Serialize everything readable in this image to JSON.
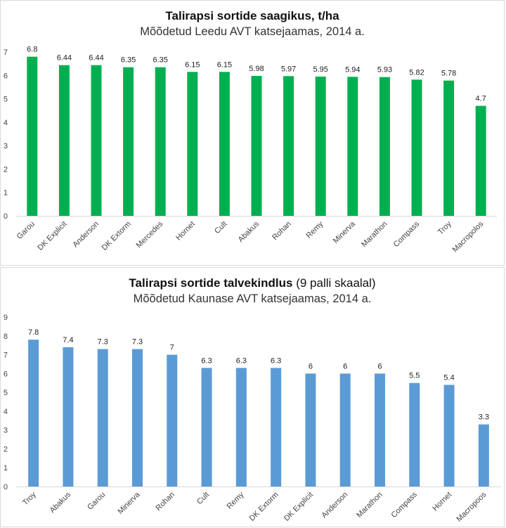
{
  "chart_data": [
    {
      "type": "bar",
      "title": "Talirapsi sortide saagikus, t/ha",
      "subtitle": "Mõõdetud Leedu AVT katsejaamas, 2014 a.",
      "categories": [
        "Garou",
        "DK Explicit",
        "Anderson",
        "DK Extorm",
        "Mercedes",
        "Hornet",
        "Cult",
        "Abakus",
        "Rohan",
        "Remy",
        "Minerva",
        "Marathon",
        "Compass",
        "Troy",
        "Macropolos"
      ],
      "values": [
        6.8,
        6.44,
        6.44,
        6.35,
        6.35,
        6.15,
        6.15,
        5.98,
        5.97,
        5.95,
        5.94,
        5.93,
        5.82,
        5.78,
        4.7
      ],
      "data_labels": [
        "6.8",
        "6.44",
        "6.44",
        "6.35",
        "6.35",
        "6.15",
        "6.15",
        "5.98",
        "5.97",
        "5.95",
        "5.94",
        "5.93",
        "5.82",
        "5.78",
        "4.7"
      ],
      "ylim": [
        0,
        7
      ],
      "yticks": [
        "0",
        "1",
        "2",
        "3",
        "4",
        "5",
        "6",
        "7"
      ],
      "grid": false,
      "color": "#00b050"
    },
    {
      "type": "bar",
      "title_bold": "Talirapsi sortide talvekindlus",
      "title_rest": " (9 palli skaalal)",
      "subtitle": "Mõõdetud Kaunase AVT katsejaamas, 2014 a.",
      "categories": [
        "Troy",
        "Abakus",
        "Garou",
        "Minerva",
        "Rohan",
        "Cult",
        "Remy",
        "DK Extorm",
        "DK Explicit",
        "Anderson",
        "Marathon",
        "Compass",
        "Hornet",
        "Macropoos"
      ],
      "values": [
        7.8,
        7.4,
        7.3,
        7.3,
        7,
        6.3,
        6.3,
        6.3,
        6,
        6,
        6,
        5.5,
        5.4,
        3.3
      ],
      "data_labels": [
        "7.8",
        "7.4",
        "7.3",
        "7.3",
        "7",
        "6.3",
        "6.3",
        "6.3",
        "6",
        "6",
        "6",
        "5.5",
        "5.4",
        "3.3"
      ],
      "ylim": [
        0,
        9
      ],
      "yticks": [
        "0",
        "1",
        "2",
        "3",
        "4",
        "5",
        "6",
        "7",
        "8",
        "9"
      ],
      "grid": false,
      "color": "#5b9bd5"
    }
  ]
}
